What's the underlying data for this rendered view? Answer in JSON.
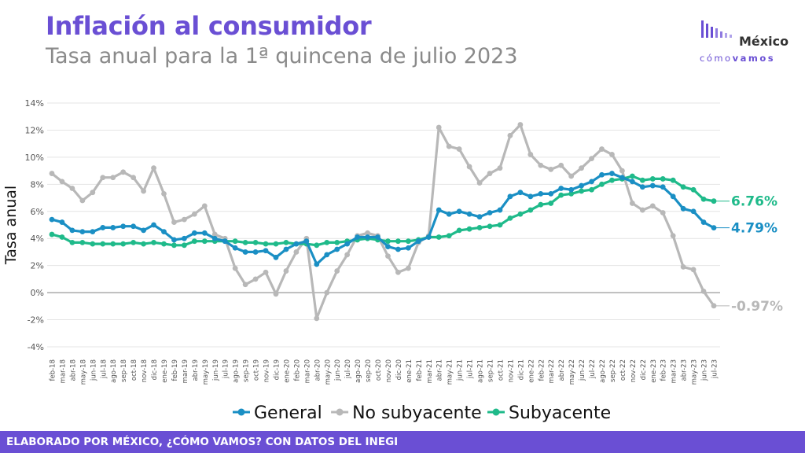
{
  "header": {
    "title": "Inflación al consumidor",
    "subtitle": "Tasa anual para la 1ª quincena de julio 2023"
  },
  "logo": {
    "name": "México",
    "tagline_light": "cómo",
    "tagline_bold": "vamos"
  },
  "footer": {
    "text": "ELABORADO POR MÉXICO, ¿CÓMO VAMOS? CON DATOS DEL INEGI"
  },
  "chart_data": {
    "type": "line",
    "title": "Inflación al consumidor",
    "subtitle": "Tasa anual para la 1ª quincena de julio 2023",
    "ylabel": "Tasa anual",
    "xlabel": "",
    "ylim": [
      -4,
      14
    ],
    "yticks": [
      "-4%",
      "-2%",
      "0%",
      "2%",
      "4%",
      "6%",
      "8%",
      "10%",
      "12%",
      "14%"
    ],
    "grid": true,
    "legend_position": "bottom",
    "categories": [
      "feb-18",
      "mar-18",
      "abr-18",
      "may-18",
      "jun-18",
      "jul-18",
      "ago-18",
      "sep-18",
      "oct-18",
      "nov-18",
      "dic-18",
      "ene-19",
      "feb-19",
      "mar-19",
      "abr-19",
      "may-19",
      "jun-19",
      "jul-19",
      "ago-19",
      "sep-19",
      "oct-19",
      "nov-19",
      "dic-19",
      "ene-20",
      "feb-20",
      "mar-20",
      "abr-20",
      "may-20",
      "jun-20",
      "jul-20",
      "ago-20",
      "sep-20",
      "oct-20",
      "nov-20",
      "dic-20",
      "ene-21",
      "feb-21",
      "mar-21",
      "abr-21",
      "may-21",
      "jun-21",
      "jul-21",
      "ago-21",
      "sep-21",
      "oct-21",
      "nov-21",
      "dic-21",
      "ene-22",
      "feb-22",
      "mar-22",
      "abr-22",
      "may-22",
      "jun-22",
      "jul-22",
      "ago-22",
      "sep-22",
      "oct-22",
      "nov-22",
      "dic-22",
      "ene-23",
      "feb-23",
      "mar-23",
      "abr-23",
      "may-23",
      "jun-23",
      "jul-23"
    ],
    "series": [
      {
        "name": "General",
        "color": "#1a8fc4",
        "end_label": "4.79%",
        "values": [
          5.4,
          5.2,
          4.6,
          4.5,
          4.5,
          4.8,
          4.8,
          4.9,
          4.9,
          4.6,
          5.0,
          4.5,
          3.9,
          4.0,
          4.4,
          4.4,
          4.0,
          3.8,
          3.3,
          3.0,
          3.0,
          3.1,
          2.6,
          3.2,
          3.6,
          3.8,
          2.1,
          2.8,
          3.2,
          3.6,
          4.1,
          4.1,
          4.1,
          3.4,
          3.2,
          3.3,
          3.8,
          4.1,
          6.1,
          5.8,
          6.0,
          5.8,
          5.6,
          5.9,
          6.1,
          7.1,
          7.4,
          7.1,
          7.3,
          7.3,
          7.7,
          7.6,
          7.9,
          8.2,
          8.7,
          8.8,
          8.5,
          8.2,
          7.8,
          7.9,
          7.8,
          7.1,
          6.2,
          6.0,
          5.2,
          4.79
        ]
      },
      {
        "name": "No subyacente",
        "color": "#b8b8b8",
        "end_label": "-0.97%",
        "values": [
          8.8,
          8.2,
          7.7,
          6.8,
          7.4,
          8.5,
          8.5,
          8.9,
          8.5,
          7.5,
          9.2,
          7.3,
          5.2,
          5.4,
          5.8,
          6.4,
          4.3,
          4.0,
          1.8,
          0.6,
          1.0,
          1.5,
          -0.1,
          1.6,
          3.0,
          4.0,
          -1.9,
          0.0,
          1.6,
          2.8,
          4.2,
          4.4,
          4.2,
          2.7,
          1.5,
          1.8,
          3.7,
          4.2,
          12.2,
          10.8,
          10.6,
          9.3,
          8.1,
          8.8,
          9.2,
          11.6,
          12.4,
          10.2,
          9.4,
          9.1,
          9.4,
          8.6,
          9.2,
          9.9,
          10.6,
          10.2,
          9.0,
          6.6,
          6.1,
          6.4,
          5.9,
          4.2,
          1.9,
          1.7,
          0.1,
          -0.97
        ]
      },
      {
        "name": "Subyacente",
        "color": "#1fba8a",
        "end_label": "6.76%",
        "values": [
          4.3,
          4.1,
          3.7,
          3.7,
          3.6,
          3.6,
          3.6,
          3.6,
          3.7,
          3.6,
          3.7,
          3.6,
          3.5,
          3.5,
          3.8,
          3.8,
          3.8,
          3.8,
          3.8,
          3.7,
          3.7,
          3.6,
          3.6,
          3.7,
          3.6,
          3.6,
          3.5,
          3.7,
          3.7,
          3.8,
          3.9,
          4.0,
          3.9,
          3.8,
          3.8,
          3.8,
          3.9,
          4.1,
          4.1,
          4.2,
          4.6,
          4.7,
          4.8,
          4.9,
          5.0,
          5.5,
          5.8,
          6.1,
          6.5,
          6.6,
          7.2,
          7.3,
          7.5,
          7.6,
          8.0,
          8.3,
          8.4,
          8.6,
          8.3,
          8.4,
          8.4,
          8.3,
          7.8,
          7.6,
          6.9,
          6.76
        ]
      }
    ]
  }
}
